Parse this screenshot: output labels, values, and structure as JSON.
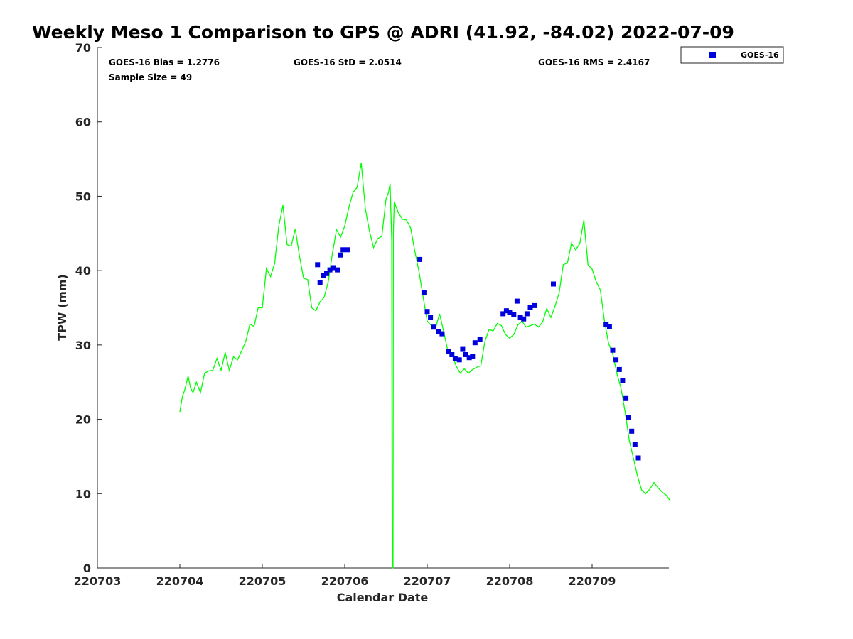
{
  "chart_data": {
    "type": "scatter",
    "title": "Weekly Meso 1 Comparison to GPS @ ADRI (41.92, -84.02) 2022-07-09",
    "xlabel": "Calendar Date",
    "ylabel": "TPW (mm)",
    "xlim": [
      0,
      6.97
    ],
    "ylim": [
      0,
      70
    ],
    "x_tick_labels": [
      "220703",
      "220704",
      "220705",
      "220706",
      "220707",
      "220708",
      "220709"
    ],
    "x_ticks": [
      0,
      1,
      2,
      3,
      4,
      5,
      6
    ],
    "y_ticks": [
      0,
      10,
      20,
      30,
      40,
      50,
      60,
      70
    ],
    "grid": false,
    "legend": {
      "placement": "top-right",
      "entries": [
        "GOES-16"
      ]
    },
    "stats": {
      "bias": "GOES-16 Bias = 1.2776",
      "std": "GOES-16 StD = 2.0514",
      "rms": "GOES-16 RMS = 2.4167",
      "sample": "Sample Size = 49"
    },
    "colors": {
      "gps_line": "#00ff00",
      "goes_marker": "#0000dd"
    },
    "series": [
      {
        "kind": "line",
        "points": [
          [
            1.0,
            21.0
          ],
          [
            1.03,
            23.0
          ],
          [
            1.06,
            24.0
          ],
          [
            1.1,
            25.8
          ],
          [
            1.13,
            24.2
          ],
          [
            1.16,
            23.6
          ],
          [
            1.2,
            25.0
          ],
          [
            1.25,
            23.6
          ],
          [
            1.3,
            26.2
          ],
          [
            1.35,
            26.5
          ],
          [
            1.4,
            26.6
          ],
          [
            1.45,
            28.2
          ],
          [
            1.5,
            26.6
          ],
          [
            1.55,
            29.0
          ],
          [
            1.6,
            26.6
          ],
          [
            1.65,
            28.4
          ],
          [
            1.7,
            28.0
          ],
          [
            1.75,
            29.2
          ],
          [
            1.8,
            30.5
          ],
          [
            1.85,
            32.8
          ],
          [
            1.9,
            32.5
          ],
          [
            1.95,
            35.0
          ],
          [
            2.0,
            35.0
          ],
          [
            2.05,
            40.3
          ],
          [
            2.1,
            39.2
          ],
          [
            2.15,
            41.0
          ],
          [
            2.2,
            46.0
          ],
          [
            2.25,
            48.8
          ],
          [
            2.3,
            43.5
          ],
          [
            2.35,
            43.3
          ],
          [
            2.4,
            45.6
          ],
          [
            2.45,
            42.0
          ],
          [
            2.5,
            39.0
          ],
          [
            2.55,
            38.8
          ],
          [
            2.6,
            35.0
          ],
          [
            2.65,
            34.6
          ],
          [
            2.7,
            35.8
          ],
          [
            2.75,
            36.4
          ],
          [
            2.8,
            38.5
          ],
          [
            2.85,
            42.3
          ],
          [
            2.9,
            45.5
          ],
          [
            2.95,
            44.5
          ],
          [
            3.0,
            46.0
          ],
          [
            3.05,
            48.5
          ],
          [
            3.1,
            50.5
          ],
          [
            3.15,
            51.2
          ],
          [
            3.2,
            54.5
          ],
          [
            3.25,
            48.3
          ],
          [
            3.3,
            45.3
          ],
          [
            3.35,
            43.1
          ],
          [
            3.4,
            44.3
          ],
          [
            3.45,
            44.6
          ],
          [
            3.5,
            49.6
          ],
          [
            3.53,
            50.5
          ],
          [
            3.55,
            51.7
          ],
          [
            3.57,
            44.0
          ],
          [
            3.575,
            0.0
          ],
          [
            3.585,
            0.0
          ],
          [
            3.59,
            45.0
          ],
          [
            3.6,
            49.2
          ],
          [
            3.65,
            47.8
          ],
          [
            3.7,
            46.9
          ],
          [
            3.75,
            46.8
          ],
          [
            3.8,
            45.7
          ],
          [
            3.85,
            42.6
          ],
          [
            3.9,
            39.9
          ],
          [
            3.95,
            36.5
          ],
          [
            4.0,
            33.2
          ],
          [
            4.05,
            32.6
          ],
          [
            4.1,
            32.2
          ],
          [
            4.15,
            34.2
          ],
          [
            4.2,
            31.8
          ],
          [
            4.25,
            29.2
          ],
          [
            4.3,
            28.8
          ],
          [
            4.35,
            27.2
          ],
          [
            4.4,
            26.2
          ],
          [
            4.45,
            26.8
          ],
          [
            4.5,
            26.2
          ],
          [
            4.55,
            26.7
          ],
          [
            4.6,
            27.0
          ],
          [
            4.65,
            27.2
          ],
          [
            4.7,
            30.5
          ],
          [
            4.75,
            32.1
          ],
          [
            4.8,
            31.9
          ],
          [
            4.85,
            32.9
          ],
          [
            4.9,
            32.6
          ],
          [
            4.95,
            31.4
          ],
          [
            5.0,
            30.9
          ],
          [
            5.05,
            31.4
          ],
          [
            5.1,
            32.7
          ],
          [
            5.15,
            33.2
          ],
          [
            5.2,
            32.4
          ],
          [
            5.25,
            32.6
          ],
          [
            5.3,
            32.8
          ],
          [
            5.35,
            32.4
          ],
          [
            5.4,
            33.1
          ],
          [
            5.45,
            34.9
          ],
          [
            5.5,
            33.7
          ],
          [
            5.55,
            35.2
          ],
          [
            5.6,
            37.0
          ],
          [
            5.65,
            40.8
          ],
          [
            5.7,
            41.0
          ],
          [
            5.75,
            43.7
          ],
          [
            5.8,
            42.8
          ],
          [
            5.85,
            43.6
          ],
          [
            5.9,
            46.8
          ],
          [
            5.95,
            40.8
          ],
          [
            6.0,
            40.2
          ],
          [
            6.05,
            38.5
          ],
          [
            6.1,
            37.4
          ],
          [
            6.15,
            33.2
          ],
          [
            6.2,
            30.2
          ],
          [
            6.25,
            28.8
          ],
          [
            6.3,
            26.2
          ],
          [
            6.35,
            24.2
          ],
          [
            6.4,
            21.0
          ],
          [
            6.45,
            17.2
          ],
          [
            6.5,
            14.8
          ],
          [
            6.55,
            12.4
          ],
          [
            6.6,
            10.5
          ],
          [
            6.65,
            10.0
          ],
          [
            6.7,
            10.6
          ],
          [
            6.75,
            11.5
          ],
          [
            6.8,
            10.8
          ],
          [
            6.85,
            10.2
          ],
          [
            6.9,
            9.8
          ],
          [
            6.95,
            9.0
          ]
        ]
      },
      {
        "kind": "scatter",
        "name": "GOES-16",
        "points": [
          [
            2.67,
            40.8
          ],
          [
            2.7,
            38.4
          ],
          [
            2.74,
            39.3
          ],
          [
            2.78,
            39.6
          ],
          [
            2.82,
            40.1
          ],
          [
            2.86,
            40.4
          ],
          [
            2.91,
            40.1
          ],
          [
            2.95,
            42.1
          ],
          [
            2.98,
            42.8
          ],
          [
            3.03,
            42.8
          ],
          [
            3.91,
            41.5
          ],
          [
            3.96,
            37.1
          ],
          [
            4.0,
            34.5
          ],
          [
            4.04,
            33.7
          ],
          [
            4.08,
            32.4
          ],
          [
            4.14,
            31.8
          ],
          [
            4.18,
            31.5
          ],
          [
            4.26,
            29.1
          ],
          [
            4.3,
            28.7
          ],
          [
            4.34,
            28.2
          ],
          [
            4.39,
            28.0
          ],
          [
            4.43,
            29.4
          ],
          [
            4.47,
            28.7
          ],
          [
            4.51,
            28.3
          ],
          [
            4.55,
            28.5
          ],
          [
            4.58,
            30.3
          ],
          [
            4.64,
            30.7
          ],
          [
            4.92,
            34.2
          ],
          [
            4.96,
            34.6
          ],
          [
            5.0,
            34.4
          ],
          [
            5.05,
            34.1
          ],
          [
            5.09,
            35.9
          ],
          [
            5.13,
            33.7
          ],
          [
            5.17,
            33.5
          ],
          [
            5.21,
            34.2
          ],
          [
            5.25,
            35.0
          ],
          [
            5.3,
            35.3
          ],
          [
            5.53,
            38.2
          ],
          [
            6.17,
            32.8
          ],
          [
            6.21,
            32.5
          ],
          [
            6.25,
            29.3
          ],
          [
            6.29,
            28.0
          ],
          [
            6.33,
            26.7
          ],
          [
            6.37,
            25.2
          ],
          [
            6.41,
            22.8
          ],
          [
            6.44,
            20.2
          ],
          [
            6.48,
            18.4
          ],
          [
            6.52,
            16.6
          ],
          [
            6.56,
            14.8
          ]
        ]
      }
    ]
  }
}
